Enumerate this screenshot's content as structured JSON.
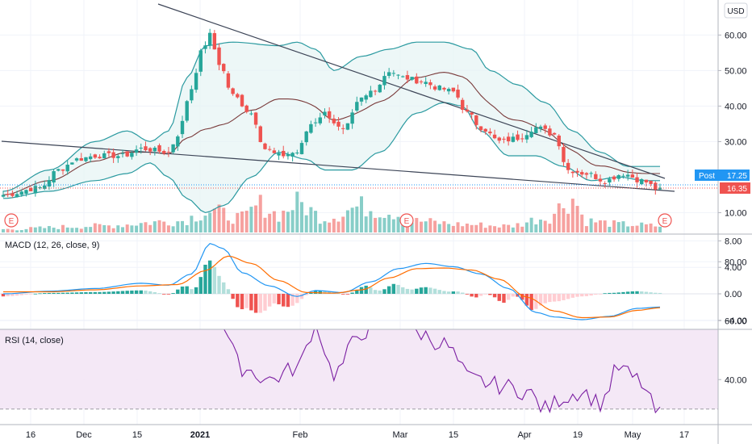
{
  "chart_data": {
    "type": "candlestick",
    "currency": "USD",
    "x_ticks": [
      "16",
      "Dec",
      "15",
      "2021",
      "Feb",
      "Mar",
      "15",
      "Apr",
      "19",
      "May",
      "17"
    ],
    "price_panel": {
      "y_ticks": [
        "60.00",
        "50.00",
        "40.00",
        "30.00",
        "10.00"
      ],
      "price_axis": [
        60,
        50,
        40,
        30,
        10
      ],
      "last_price_label": "16.35",
      "post_label": "Post",
      "post_price_label": "17.25",
      "earnings_marker_label": "E",
      "earnings_marker_count": 3,
      "colors": {
        "up": "#26a69a",
        "down": "#ef5350",
        "band": "#2b9aa0",
        "band_fill": "#e5f4f4",
        "basis": "#7a3b3b",
        "trendline": "#3d4557"
      }
    },
    "macd_panel": {
      "title": "MACD (12, 26, close, 9)",
      "y_ticks": [
        "8.00",
        "4.00",
        "0.00",
        "−4.00"
      ],
      "colors": {
        "macd": "#2196f3",
        "signal": "#ff6d00",
        "hist_up_strong": "#26a69a",
        "hist_up_weak": "#b2dfdb",
        "hist_down_strong": "#ef5350",
        "hist_down_weak": "#ffcdd2"
      }
    },
    "rsi_panel": {
      "title": "RSI (14, close)",
      "y_ticks": [
        "80.00",
        "60.00",
        "40.00"
      ],
      "upper_band": 70,
      "lower_band": 30,
      "colors": {
        "line": "#7b1fa2",
        "band_fill": "#f3e5f5"
      }
    }
  }
}
